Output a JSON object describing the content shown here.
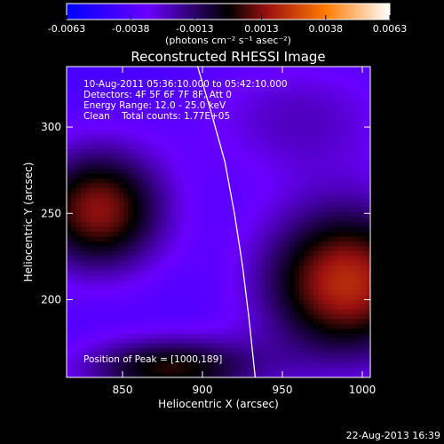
{
  "chart_data": {
    "type": "heatmap",
    "title": "Reconstructed RHESSI Image",
    "xlabel": "Heliocentric X (arcsec)",
    "ylabel": "Heliocentric Y (arcsec)",
    "xlim": [
      815,
      1005
    ],
    "ylim": [
      155,
      335
    ],
    "x_ticks": [
      "850",
      "900",
      "950",
      "1000"
    ],
    "y_ticks": [
      "200",
      "250",
      "300"
    ],
    "x_tick_values": [
      850,
      900,
      950,
      1000
    ],
    "y_tick_values": [
      200,
      250,
      300
    ],
    "colorbar": {
      "ticks": [
        "-0.0063",
        "-0.0038",
        "-0.0013",
        "0.0013",
        "0.0038",
        "0.0063"
      ],
      "tick_values": [
        -0.0063,
        -0.0038,
        -0.0013,
        0.0013,
        0.0038,
        0.0063
      ],
      "unit_label": "(photons cm⁻² s⁻¹ asec⁻²)",
      "range": [
        -0.0063,
        0.0063
      ],
      "colors": [
        "#0000ff",
        "#6a00ff",
        "#000000",
        "#9a1010",
        "#ff7a00",
        "#ffffff"
      ]
    },
    "annotations": [
      "10-Aug-2011 05:36:10.000 to 05:42:10.000",
      "Detectors: 4F 5F 6F 7F 8F, Att 0",
      "Energy Range: 12.0 - 25.0 keV",
      "Clean    Total counts: 1.77E+05"
    ],
    "peak_label": "Position of Peak = [1000,189]",
    "peak": [
      1000,
      189
    ],
    "limb_curve": [
      [
        897,
        335
      ],
      [
        905,
        310
      ],
      [
        914,
        280
      ],
      [
        920,
        250
      ],
      [
        925,
        220
      ],
      [
        929,
        190
      ],
      [
        933,
        155
      ]
    ],
    "sources": [
      {
        "x": 835,
        "y": 252,
        "amp": 0.0056,
        "sx": 30,
        "sy": 26
      },
      {
        "x": 990,
        "y": 210,
        "amp": 0.0063,
        "sx": 38,
        "sy": 32
      },
      {
        "x": 880,
        "y": 160,
        "amp": 0.0045,
        "sx": 40,
        "sy": 13
      },
      {
        "x": 960,
        "y": 305,
        "amp": 0.0018,
        "sx": 45,
        "sy": 25
      }
    ],
    "background": -0.0042
  },
  "footer": {
    "timestamp": "22-Aug-2013 16:39"
  }
}
